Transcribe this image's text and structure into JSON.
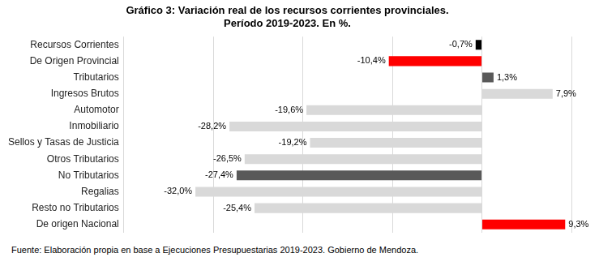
{
  "chart_data": {
    "type": "bar",
    "orientation": "horizontal",
    "title": [
      "Gráfico 3: Variación real de los recursos corrientes provinciales.",
      "Período 2019-2023. En %."
    ],
    "source": "Fuente: Elaboración propia en base a Ejecuciones Presupuestarias 2019-2023. Gobierno de Mendoza.",
    "categories": [
      "Recursos Corrientes",
      "De Origen Provincial",
      "Tributarios",
      "Ingresos Brutos",
      "Automotor",
      "Inmobiliario",
      "Sellos y Tasas de Justicia",
      "Otros Tributarios",
      "No Tributarios",
      "Regalias",
      "Resto no Tributarios",
      "De origen Nacional"
    ],
    "values": [
      -0.7,
      -10.4,
      1.3,
      7.9,
      -19.6,
      -28.2,
      -19.2,
      -26.5,
      -27.4,
      -32.0,
      -25.4,
      9.3
    ],
    "value_labels": [
      "-0,7%",
      "-10,4%",
      "1,3%",
      "7,9%",
      "-19,6%",
      "-28,2%",
      "-19,2%",
      "-26,5%",
      "-27,4%",
      "-32,0%",
      "-25,4%",
      "9,3%"
    ],
    "colors": [
      "#000000",
      "#ff0000",
      "#595959",
      "#d9d9d9",
      "#d9d9d9",
      "#d9d9d9",
      "#d9d9d9",
      "#d9d9d9",
      "#595959",
      "#d9d9d9",
      "#d9d9d9",
      "#ff0000"
    ],
    "xlim": [
      -40,
      10
    ],
    "xticks": [
      -40,
      -30,
      -20,
      -10,
      0,
      10
    ],
    "grid": true,
    "data_labels": true,
    "tick_labels": "y"
  }
}
